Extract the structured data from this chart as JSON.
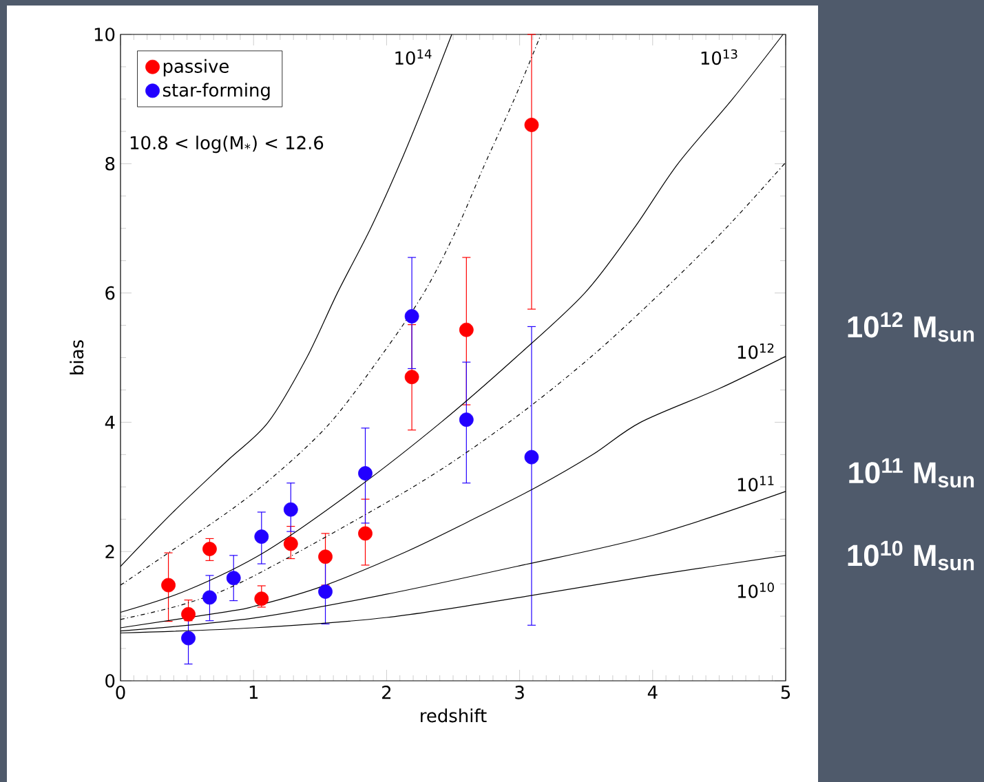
{
  "chart_data": {
    "type": "scatter",
    "xlabel": "redshift",
    "ylabel": "bias",
    "xlim": [
      0,
      5
    ],
    "ylim": [
      0,
      10
    ],
    "xticks": [
      0,
      1,
      2,
      3,
      4,
      5
    ],
    "yticks": [
      0,
      2,
      4,
      6,
      8,
      10
    ],
    "legend": "top left",
    "grid": false,
    "series": [
      {
        "name": "passive",
        "color": "#ff0000",
        "marker": "circle",
        "x": [
          0.36,
          0.51,
          0.67,
          1.06,
          1.28,
          1.54,
          1.84,
          2.19,
          2.6,
          3.09
        ],
        "values": [
          1.48,
          1.03,
          2.04,
          1.27,
          2.12,
          1.92,
          2.28,
          4.7,
          5.43,
          8.6
        ],
        "errors": [
          [
            0.92,
            1.98
          ],
          [
            0.93,
            1.25
          ],
          [
            1.86,
            2.2
          ],
          [
            1.14,
            1.47
          ],
          [
            1.89,
            2.39
          ],
          [
            1.48,
            2.28
          ],
          [
            1.79,
            2.81
          ],
          [
            3.88,
            5.51
          ],
          [
            4.27,
            6.55
          ],
          [
            5.75,
            10.0
          ]
        ]
      },
      {
        "name": "star-forming",
        "color": "#2200ff",
        "marker": "circle",
        "x": [
          0.51,
          0.67,
          0.85,
          1.06,
          1.28,
          1.54,
          1.84,
          2.19,
          2.6,
          3.09
        ],
        "values": [
          0.66,
          1.29,
          1.59,
          2.23,
          2.65,
          1.38,
          3.21,
          5.64,
          4.04,
          3.46
        ],
        "errors": [
          [
            0.26,
            0.95
          ],
          [
            0.93,
            1.63
          ],
          [
            1.24,
            1.94
          ],
          [
            1.81,
            2.61
          ],
          [
            2.31,
            3.06
          ],
          [
            0.88,
            1.85
          ],
          [
            2.44,
            3.91
          ],
          [
            4.83,
            6.55
          ],
          [
            3.06,
            4.93
          ],
          [
            0.86,
            5.48
          ]
        ]
      },
      {
        "type": "line",
        "color": "#000000",
        "line_style": "solid",
        "marker": "none",
        "x": [
          0,
          0.39,
          0.8,
          1.11,
          1.4,
          1.63,
          1.88,
          2.1,
          2.3,
          2.49
        ],
        "values": [
          1.77,
          2.6,
          3.4,
          4,
          5,
          6,
          7,
          8,
          9,
          10
        ]
      },
      {
        "type": "line",
        "color": "#000000",
        "line_style": "dashdot",
        "marker": "none",
        "x": [
          0,
          0.8,
          1.2,
          1.58,
          1.95,
          2.28,
          2.53,
          2.74,
          2.96,
          3.16
        ],
        "values": [
          1.48,
          2.6,
          3.25,
          4,
          5,
          6,
          7,
          8,
          9,
          10
        ]
      },
      {
        "type": "line",
        "color": "#000000",
        "line_style": "solid",
        "marker": "none",
        "x": [
          0,
          0.5,
          1.09,
          1.79,
          2.41,
          2.97,
          3.49,
          3.86,
          4.19,
          4.6,
          4.98
        ],
        "values": [
          1.06,
          1.4,
          2,
          3,
          4,
          5,
          6,
          7,
          8,
          9,
          10
        ]
      },
      {
        "type": "line",
        "color": "#000000",
        "line_style": "dashdot",
        "marker": "none",
        "x": [
          0,
          0.5,
          1.0,
          2.2,
          2.92,
          3.53,
          4.06,
          4.55,
          5
        ],
        "values": [
          0.95,
          1.2,
          1.62,
          3,
          4,
          5,
          6,
          7,
          8.02
        ]
      },
      {
        "type": "line",
        "color": "#000000",
        "line_style": "solid",
        "marker": "none",
        "x": [
          0,
          0.8,
          1,
          1.5,
          2.15,
          2.7,
          3.13,
          3.55,
          3.91,
          4.5,
          5
        ],
        "values": [
          0.82,
          1.07,
          1.15,
          1.45,
          2,
          2.55,
          3,
          3.5,
          4,
          4.52,
          5.02
        ]
      },
      {
        "type": "line",
        "color": "#000000",
        "line_style": "solid",
        "marker": "none",
        "x": [
          0,
          1,
          2,
          3,
          4,
          5
        ],
        "values": [
          0.77,
          0.97,
          1.34,
          1.78,
          2.25,
          2.93
        ]
      },
      {
        "type": "line",
        "color": "#000000",
        "line_style": "solid",
        "marker": "none",
        "x": [
          0,
          1,
          2,
          3,
          4,
          5
        ],
        "values": [
          0.74,
          0.82,
          0.98,
          1.29,
          1.63,
          1.94
        ]
      }
    ],
    "annotations": [
      "10.8 < log(M$_{*}$) < 12.6",
      "10$^{14}$",
      "10$^{13}$",
      "10$^{12}$",
      "10$^{11}$",
      "10$^{10}$",
      "10$^{12}$ M$_{sun}$",
      "10$^{11}$ M$_{sun}$",
      "10$^{10}$ M$_{sun}$"
    ]
  }
}
